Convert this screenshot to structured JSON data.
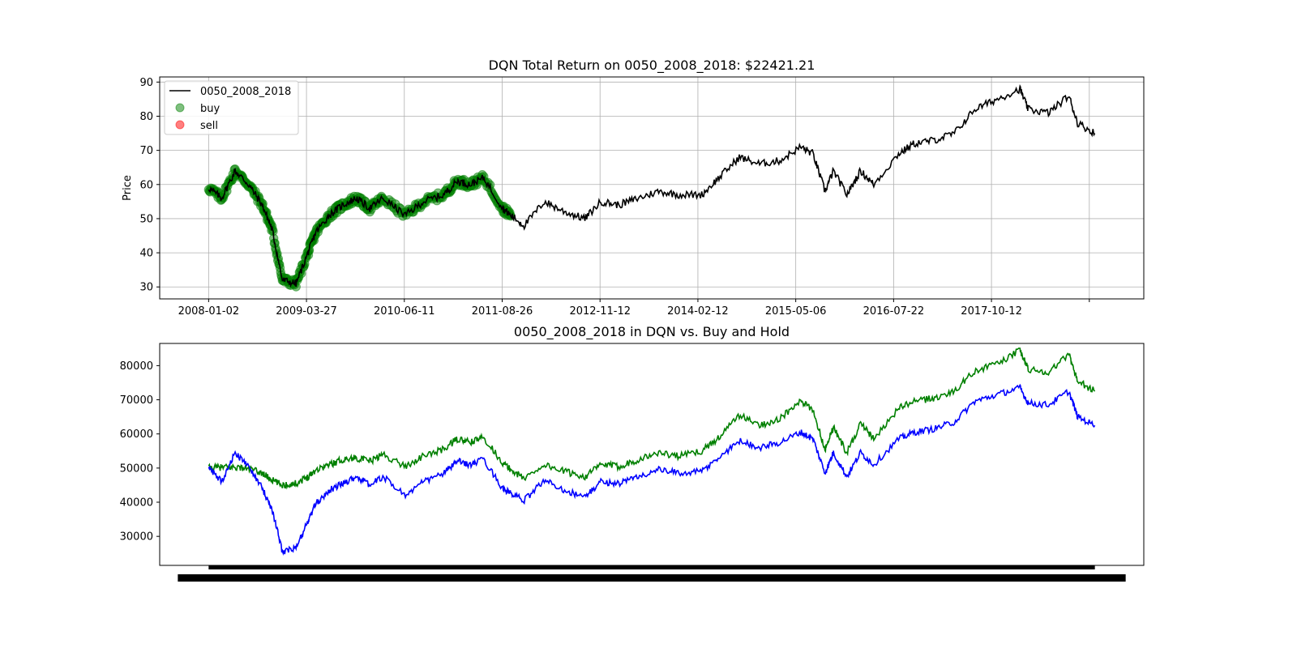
{
  "chart_data": [
    {
      "type": "line",
      "title": "DQN Total Return on 0050_2008_2018: $22421.21",
      "xlabel": "",
      "ylabel": "Price",
      "ylim": [
        26.5,
        91.5
      ],
      "yticks": [
        30,
        40,
        50,
        60,
        70,
        80,
        90
      ],
      "xtick_labels": [
        "2008-01-02",
        "2009-03-27",
        "2010-06-11",
        "2011-08-26",
        "2012-11-12",
        "2014-02-12",
        "2015-05-06",
        "2016-07-22",
        "2017-10-12"
      ],
      "grid": true,
      "legend": {
        "placement": "upper-left",
        "entries": [
          "0050_2008_2018",
          "buy",
          "sell"
        ]
      },
      "series": [
        {
          "name": "0050_2008_2018",
          "color": "#000000",
          "x": [
            "2008-01-02",
            "2008-03-01",
            "2008-05-01",
            "2008-07-01",
            "2008-09-01",
            "2008-10-15",
            "2008-12-01",
            "2009-02-01",
            "2009-03-27",
            "2009-05-01",
            "2009-07-01",
            "2009-09-01",
            "2009-11-01",
            "2010-01-01",
            "2010-03-01",
            "2010-06-11",
            "2010-09-01",
            "2010-12-01",
            "2011-02-01",
            "2011-04-01",
            "2011-06-01",
            "2011-08-26",
            "2011-10-01",
            "2011-12-01",
            "2012-03-01",
            "2012-06-01",
            "2012-09-01",
            "2012-11-12",
            "2013-02-01",
            "2013-05-01",
            "2013-08-01",
            "2013-11-01",
            "2014-02-12",
            "2014-05-01",
            "2014-08-01",
            "2014-11-01",
            "2015-02-01",
            "2015-05-06",
            "2015-07-01",
            "2015-08-24",
            "2015-10-01",
            "2015-12-01",
            "2016-02-01",
            "2016-04-01",
            "2016-07-22",
            "2016-10-01",
            "2017-01-01",
            "2017-04-01",
            "2017-07-01",
            "2017-10-12",
            "2018-01-23",
            "2018-03-01",
            "2018-06-01",
            "2018-09-01",
            "2018-10-11",
            "2018-12-28"
          ],
          "values": [
            59,
            56,
            64,
            60,
            54,
            47,
            32,
            31,
            40,
            46,
            51,
            54,
            56,
            53,
            56,
            51,
            55,
            57,
            61,
            60,
            62,
            53,
            51,
            48,
            55,
            52,
            50,
            55,
            54,
            56,
            58,
            57,
            57,
            62,
            68,
            66,
            67,
            71,
            69,
            58,
            64,
            57,
            64,
            60,
            69,
            72,
            73,
            75,
            82,
            85,
            88,
            82,
            81,
            86,
            78,
            75
          ]
        },
        {
          "name": "buy",
          "color": "#008000",
          "marker": "circle",
          "x": [
            "2008-01-02",
            "2008-03-01",
            "2008-05-01",
            "2008-07-01",
            "2008-09-01",
            "2008-10-15",
            "2008-12-01",
            "2009-02-01",
            "2009-03-27",
            "2009-05-01",
            "2009-07-01",
            "2009-09-01",
            "2009-11-01",
            "2010-01-01",
            "2010-03-01",
            "2010-06-11",
            "2010-09-01",
            "2010-12-01",
            "2011-02-01",
            "2011-04-01",
            "2011-06-01",
            "2011-08-26",
            "2011-09-15",
            "2011-10-01"
          ],
          "values": [
            59,
            56,
            64,
            60,
            54,
            47,
            32,
            31,
            40,
            46,
            51,
            54,
            56,
            53,
            56,
            51,
            55,
            57,
            61,
            60,
            62,
            53,
            52,
            51
          ]
        },
        {
          "name": "sell",
          "color": "#ff0000",
          "marker": "circle",
          "x": [],
          "values": []
        }
      ]
    },
    {
      "type": "line",
      "title": "0050_2008_2018 in DQN vs. Buy and Hold",
      "xlabel": "",
      "ylabel": "",
      "ylim": [
        21500,
        86500
      ],
      "yticks": [
        30000,
        40000,
        50000,
        60000,
        70000,
        80000
      ],
      "grid": false,
      "series": [
        {
          "color": "#008000",
          "x": [
            "2008-01-02",
            "2008-03-01",
            "2008-05-01",
            "2008-07-01",
            "2008-09-01",
            "2008-10-15",
            "2008-12-01",
            "2009-02-01",
            "2009-03-27",
            "2009-05-01",
            "2009-07-01",
            "2009-09-01",
            "2009-11-01",
            "2010-01-01",
            "2010-03-01",
            "2010-06-11",
            "2010-09-01",
            "2010-12-01",
            "2011-02-01",
            "2011-04-01",
            "2011-06-01",
            "2011-08-26",
            "2011-10-01",
            "2011-12-01",
            "2012-03-01",
            "2012-06-01",
            "2012-09-01",
            "2012-11-12",
            "2013-02-01",
            "2013-05-01",
            "2013-08-01",
            "2013-11-01",
            "2014-02-12",
            "2014-05-01",
            "2014-08-01",
            "2014-11-01",
            "2015-02-01",
            "2015-05-06",
            "2015-07-01",
            "2015-08-24",
            "2015-10-01",
            "2015-12-01",
            "2016-02-01",
            "2016-04-01",
            "2016-07-22",
            "2016-10-01",
            "2017-01-01",
            "2017-04-01",
            "2017-07-01",
            "2017-10-12",
            "2018-01-23",
            "2018-03-01",
            "2018-06-01",
            "2018-09-01",
            "2018-10-11",
            "2018-12-28"
          ],
          "values": [
            50000,
            50200,
            50300,
            49800,
            48500,
            46500,
            45000,
            45500,
            47500,
            49500,
            51000,
            52500,
            53000,
            52000,
            54000,
            50500,
            53500,
            55500,
            58500,
            57500,
            59000,
            51500,
            49500,
            47000,
            51000,
            49000,
            47500,
            51000,
            50500,
            52500,
            54500,
            53500,
            55000,
            59000,
            65500,
            62500,
            64500,
            69500,
            67000,
            55500,
            62000,
            54500,
            63000,
            58500,
            67500,
            69500,
            70500,
            72500,
            78500,
            80500,
            84500,
            79000,
            78000,
            83500,
            75500,
            72500
          ]
        },
        {
          "color": "#0000ff",
          "x": [
            "2008-01-02",
            "2008-03-01",
            "2008-05-01",
            "2008-07-01",
            "2008-09-01",
            "2008-10-15",
            "2008-12-01",
            "2009-02-01",
            "2009-03-27",
            "2009-05-01",
            "2009-07-01",
            "2009-09-01",
            "2009-11-01",
            "2010-01-01",
            "2010-03-01",
            "2010-06-11",
            "2010-09-01",
            "2010-12-01",
            "2011-02-01",
            "2011-04-01",
            "2011-06-01",
            "2011-08-26",
            "2011-10-01",
            "2011-12-01",
            "2012-03-01",
            "2012-06-01",
            "2012-09-01",
            "2012-11-12",
            "2013-02-01",
            "2013-05-01",
            "2013-08-01",
            "2013-11-01",
            "2014-02-12",
            "2014-05-01",
            "2014-08-01",
            "2014-11-01",
            "2015-02-01",
            "2015-05-06",
            "2015-07-01",
            "2015-08-24",
            "2015-10-01",
            "2015-12-01",
            "2016-02-01",
            "2016-04-01",
            "2016-07-22",
            "2016-10-01",
            "2017-01-01",
            "2017-04-01",
            "2017-07-01",
            "2017-10-12",
            "2018-01-23",
            "2018-03-01",
            "2018-06-01",
            "2018-09-01",
            "2018-10-11",
            "2018-12-28"
          ],
          "values": [
            50000,
            46000,
            54500,
            50500,
            44000,
            38000,
            25500,
            26500,
            34500,
            39500,
            43500,
            45500,
            47500,
            45000,
            47500,
            42000,
            46000,
            48500,
            52000,
            51000,
            52500,
            44000,
            42500,
            40500,
            46500,
            43500,
            41500,
            46000,
            45500,
            47500,
            49500,
            48500,
            49000,
            53000,
            58000,
            56000,
            57500,
            60500,
            58500,
            48500,
            54500,
            47500,
            54500,
            51000,
            58500,
            60500,
            61500,
            63500,
            69500,
            71500,
            73500,
            69000,
            68500,
            72500,
            65000,
            62500
          ]
        }
      ]
    }
  ]
}
